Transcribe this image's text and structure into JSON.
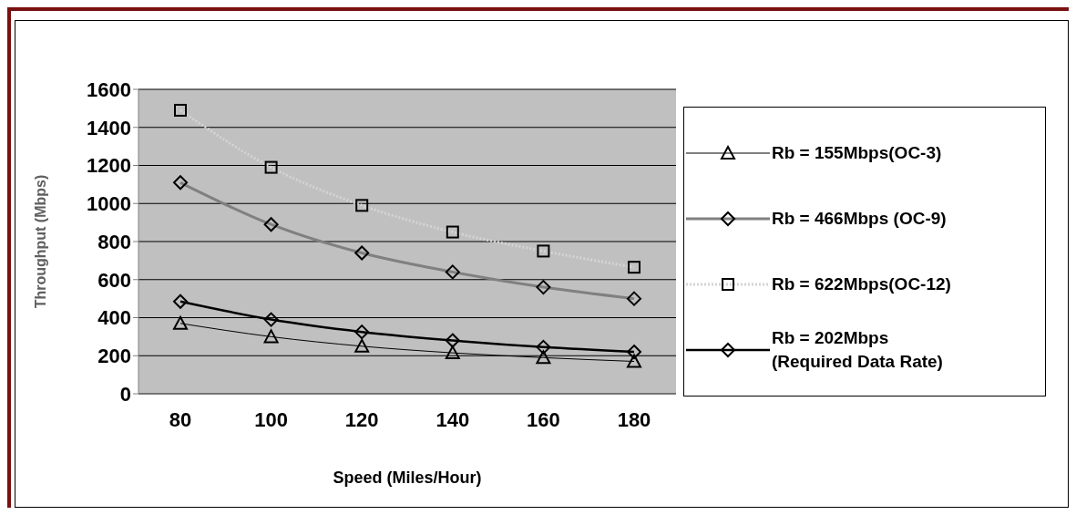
{
  "chart_data": {
    "type": "line",
    "xlabel": "Speed (Miles/Hour)",
    "ylabel": "Throughput (Mbps)",
    "categories": [
      "80",
      "100",
      "120",
      "140",
      "160",
      "180"
    ],
    "ylim": [
      0,
      1600
    ],
    "yticks": [
      0,
      200,
      400,
      600,
      800,
      1000,
      1200,
      1400,
      1600
    ],
    "grid": "y",
    "legend": "right",
    "series": [
      {
        "name": "Rb = 155Mbps(OC-3)",
        "color": "#000000",
        "marker": "triangle",
        "line_style": "solid",
        "values": [
          370,
          300,
          250,
          215,
          190,
          170
        ]
      },
      {
        "name": "Rb = 466Mbps (OC-9)",
        "color": "#808080",
        "marker": "diamond",
        "line_style": "solid",
        "values": [
          1110,
          890,
          740,
          640,
          560,
          500
        ]
      },
      {
        "name": "Rb = 622Mbps(OC-12)",
        "color": "#d4d4d4",
        "marker": "square",
        "line_style": "dotted",
        "values": [
          1490,
          1190,
          990,
          850,
          750,
          665
        ]
      },
      {
        "name": "Rb = 202Mbps\n(Required Data Rate)",
        "color": "#000000",
        "marker": "diamond",
        "line_style": "solid",
        "values": [
          485,
          390,
          325,
          280,
          245,
          220
        ]
      }
    ]
  }
}
